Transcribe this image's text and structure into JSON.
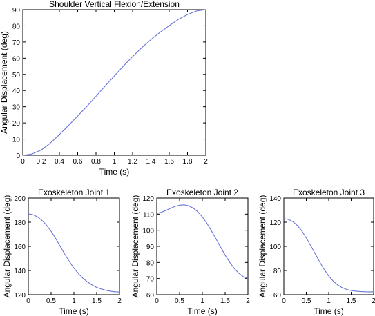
{
  "chart_data": [
    {
      "type": "line",
      "title": "Shoulder Vertical Flexion/Extension",
      "xlabel": "Time (s)",
      "ylabel": "Angular Displacement (deg)",
      "xlim": [
        0,
        2
      ],
      "ylim": [
        0,
        90
      ],
      "xticks": [
        0,
        0.2,
        0.4,
        0.6,
        0.8,
        1,
        1.2,
        1.4,
        1.6,
        1.8,
        2
      ],
      "yticks": [
        0,
        10,
        20,
        30,
        40,
        50,
        60,
        70,
        80,
        90
      ],
      "grid": false,
      "color": "#6673d6",
      "x": [
        0,
        0.1,
        0.2,
        0.3,
        0.4,
        0.5,
        0.6,
        0.7,
        0.8,
        0.9,
        1.0,
        1.1,
        1.2,
        1.3,
        1.4,
        1.5,
        1.6,
        1.7,
        1.8,
        1.9,
        2.0
      ],
      "y": [
        0,
        0.8,
        3.2,
        7.5,
        12.8,
        18.5,
        24.3,
        30.2,
        36.5,
        42.8,
        49.0,
        55.2,
        61.0,
        66.5,
        71.5,
        76.0,
        80.1,
        84.0,
        87.0,
        89.2,
        90.0
      ]
    },
    {
      "type": "line",
      "title": "Exoskeleton Joint 1",
      "xlabel": "Time (s)",
      "ylabel": "Angular Displacement (deg)",
      "xlim": [
        0,
        2
      ],
      "ylim": [
        120,
        200
      ],
      "xticks": [
        0,
        0.5,
        1,
        1.5,
        2
      ],
      "yticks": [
        120,
        140,
        160,
        180,
        200
      ],
      "grid": false,
      "color": "#6673d6",
      "x": [
        0,
        0.1,
        0.2,
        0.3,
        0.4,
        0.5,
        0.6,
        0.7,
        0.8,
        0.9,
        1.0,
        1.1,
        1.2,
        1.3,
        1.4,
        1.5,
        1.6,
        1.7,
        1.8,
        1.9,
        2.0
      ],
      "y": [
        187,
        186.2,
        184.5,
        181.5,
        177.5,
        172.5,
        166.5,
        160.0,
        153.5,
        147.5,
        142.0,
        137.5,
        133.5,
        130.5,
        128.0,
        126.0,
        124.7,
        123.6,
        122.9,
        122.4,
        122.2
      ]
    },
    {
      "type": "line",
      "title": "Exoskeleton Joint 2",
      "xlabel": "Time (s)",
      "ylabel": "Angular Displacement (deg)",
      "xlim": [
        0,
        2
      ],
      "ylim": [
        60,
        120
      ],
      "xticks": [
        0,
        0.5,
        1,
        1.5,
        2
      ],
      "yticks": [
        60,
        70,
        80,
        90,
        100,
        110,
        120
      ],
      "grid": false,
      "color": "#6673d6",
      "x": [
        0,
        0.1,
        0.2,
        0.3,
        0.4,
        0.5,
        0.6,
        0.7,
        0.8,
        0.9,
        1.0,
        1.1,
        1.2,
        1.3,
        1.4,
        1.5,
        1.6,
        1.7,
        1.8,
        1.9,
        2.0
      ],
      "y": [
        110.5,
        111.2,
        112.3,
        113.6,
        114.8,
        115.6,
        115.8,
        115.2,
        113.8,
        111.5,
        108.3,
        104.3,
        99.6,
        94.6,
        89.5,
        84.5,
        80.1,
        76.3,
        73.3,
        71.2,
        70.0
      ]
    },
    {
      "type": "line",
      "title": "Exoskeleton Joint 3",
      "xlabel": "Time (s)",
      "ylabel": "Angular Displacement (deg)",
      "xlim": [
        0,
        2
      ],
      "ylim": [
        60,
        140
      ],
      "xticks": [
        0,
        0.5,
        1,
        1.5,
        2
      ],
      "yticks": [
        60,
        80,
        100,
        120,
        140
      ],
      "grid": false,
      "color": "#6673d6",
      "x": [
        0,
        0.1,
        0.2,
        0.3,
        0.4,
        0.5,
        0.6,
        0.7,
        0.8,
        0.9,
        1.0,
        1.1,
        1.2,
        1.3,
        1.4,
        1.5,
        1.6,
        1.7,
        1.8,
        1.9,
        2.0
      ],
      "y": [
        123,
        122.3,
        120.5,
        117.3,
        112.8,
        107.0,
        100.5,
        93.8,
        87.0,
        80.8,
        75.5,
        71.2,
        68.0,
        65.8,
        64.3,
        63.4,
        62.9,
        62.6,
        62.4,
        62.3,
        62.3
      ]
    }
  ]
}
